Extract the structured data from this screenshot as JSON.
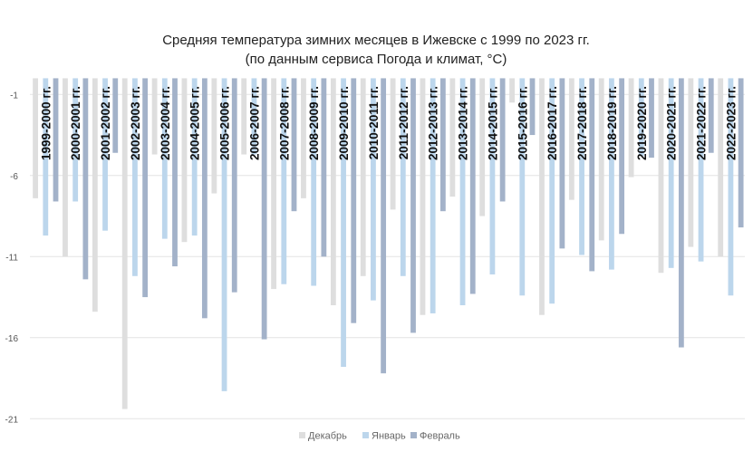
{
  "chart_data": {
    "type": "bar",
    "title": "Средняя температура зимних месяцев в Ижевске с 1999 по 2023 гг.",
    "subtitle": "(по данным сервиса Погода и климат, °С)",
    "xlabel": "",
    "ylabel": "",
    "ylim": [
      -22,
      0
    ],
    "yticks": [
      -1,
      -6,
      -11,
      -16,
      -21
    ],
    "grid": true,
    "legend_position": "bottom",
    "categories": [
      "1999-2000 гг.",
      "2000-2001 гг.",
      "2001-2002 гг.",
      "2002-2003 гг.",
      "2003-2004 гг.",
      "2004-2005 гг.",
      "2005-2006 гг.",
      "2006-2007 гг.",
      "2007-2008 гг.",
      "2008-2009 гг.",
      "2009-2010 гг.",
      "2010-2011 гг.",
      "2011-2012 гг.",
      "2012-2013 гг.",
      "2013-2014 гг.",
      "2014-2015 гг.",
      "2015-2016 гг.",
      "2016-2017 гг.",
      "2017-2018 гг.",
      "2018-2019 гг.",
      "2019-2020 гг.",
      "2020-2021 гг.",
      "2021-2022 гг.",
      "2022-2023 гг."
    ],
    "series": [
      {
        "name": "Декабрь",
        "color": "#dedede",
        "values": [
          -7.4,
          -11.0,
          -14.4,
          -20.4,
          -4.7,
          -10.1,
          -7.1,
          -4.7,
          -13.0,
          -7.4,
          -14.0,
          -12.2,
          -8.1,
          -14.6,
          -7.3,
          -8.5,
          -1.5,
          -14.6,
          -7.5,
          -10.0,
          -6.1,
          -12.0,
          -10.4,
          -11.0
        ]
      },
      {
        "name": "Январь",
        "color": "#bcd6ec",
        "values": [
          -9.7,
          -7.6,
          -9.4,
          -12.2,
          -9.9,
          -9.7,
          -19.3,
          -4.7,
          -12.7,
          -12.8,
          -17.8,
          -13.7,
          -12.2,
          -14.5,
          -14.0,
          -12.1,
          -13.4,
          -13.9,
          -10.9,
          -11.8,
          -4.8,
          -11.7,
          -11.3,
          -13.4
        ]
      },
      {
        "name": "Февраль",
        "color": "#a3b2c9",
        "values": [
          -7.6,
          -12.4,
          -4.6,
          -13.5,
          -11.6,
          -14.8,
          -13.2,
          -16.1,
          -8.2,
          -11.0,
          -15.1,
          -18.2,
          -15.7,
          -8.2,
          -13.3,
          -7.6,
          -3.5,
          -10.5,
          -11.9,
          -9.6,
          -4.9,
          -16.6,
          -4.6,
          -9.2
        ]
      }
    ]
  }
}
